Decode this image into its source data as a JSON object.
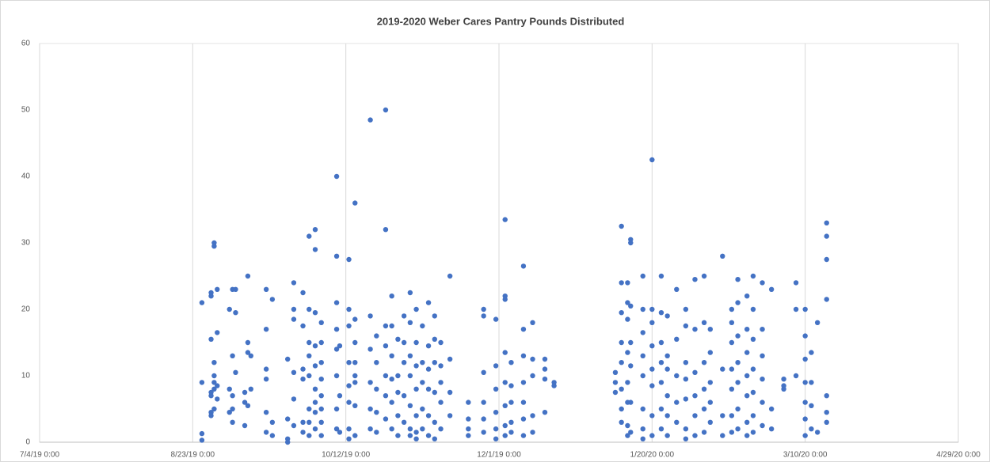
{
  "chart_data": {
    "type": "scatter",
    "title": "2019-2020 Weber Cares Pantry Pounds Distributed",
    "xlim": [
      43650,
      43950
    ],
    "xticks": [
      {
        "value": 43650,
        "label": "7/4/19 0:00"
      },
      {
        "value": 43700,
        "label": "8/23/19 0:00"
      },
      {
        "value": 43750,
        "label": "10/12/19 0:00"
      },
      {
        "value": 43800,
        "label": "12/1/19 0:00"
      },
      {
        "value": 43850,
        "label": "1/20/20 0:00"
      },
      {
        "value": 43900,
        "label": "3/10/20 0:00"
      },
      {
        "value": 43950,
        "label": "4/29/20 0:00"
      }
    ],
    "ylim": [
      0,
      60
    ],
    "yticks": [
      0,
      10,
      20,
      30,
      40,
      50,
      60
    ],
    "grid": true,
    "series": [
      {
        "color": "#4472c4",
        "x": [
          43703,
          43703,
          43703,
          43703,
          43706,
          43706,
          43706,
          43706,
          43706,
          43706,
          43706,
          43707,
          43707,
          43707,
          43707,
          43707,
          43707,
          43707,
          43708,
          43708,
          43708,
          43708,
          43712,
          43712,
          43712,
          43713,
          43713,
          43713,
          43713,
          43713,
          43714,
          43714,
          43714,
          43717,
          43717,
          43717,
          43718,
          43718,
          43718,
          43718,
          43719,
          43719,
          43724,
          43724,
          43724,
          43724,
          43724,
          43724,
          43726,
          43726,
          43726,
          43731,
          43731,
          43731,
          43731,
          43733,
          43733,
          43733,
          43733,
          43733,
          43733,
          43736,
          43736,
          43736,
          43736,
          43736,
          43736,
          43738,
          43738,
          43738,
          43738,
          43738,
          43738,
          43738,
          43738,
          43740,
          43740,
          43740,
          43740,
          43740,
          43740,
          43740,
          43740,
          43740,
          43742,
          43742,
          43742,
          43742,
          43742,
          43742,
          43742,
          43742,
          43747,
          43747,
          43747,
          43747,
          43747,
          43747,
          43747,
          43747,
          43748,
          43748,
          43748,
          43751,
          43751,
          43751,
          43751,
          43751,
          43751,
          43751,
          43751,
          43753,
          43753,
          43753,
          43753,
          43753,
          43753,
          43753,
          43753,
          43758,
          43758,
          43758,
          43758,
          43758,
          43758,
          43760,
          43760,
          43760,
          43760,
          43760,
          43763,
          43763,
          43763,
          43763,
          43763,
          43763,
          43763,
          43765,
          43765,
          43765,
          43765,
          43765,
          43765,
          43767,
          43767,
          43767,
          43767,
          43767,
          43769,
          43769,
          43769,
          43769,
          43769,
          43771,
          43771,
          43771,
          43771,
          43771,
          43771,
          43771,
          43773,
          43773,
          43773,
          43773,
          43773,
          43773,
          43773,
          43775,
          43775,
          43775,
          43775,
          43775,
          43777,
          43777,
          43777,
          43777,
          43777,
          43777,
          43779,
          43779,
          43779,
          43779,
          43779,
          43779,
          43781,
          43781,
          43781,
          43781,
          43781,
          43784,
          43784,
          43784,
          43784,
          43790,
          43790,
          43790,
          43790,
          43795,
          43795,
          43795,
          43795,
          43795,
          43795,
          43799,
          43799,
          43799,
          43799,
          43799,
          43799,
          43802,
          43802,
          43802,
          43802,
          43802,
          43802,
          43802,
          43802,
          43804,
          43804,
          43804,
          43804,
          43804,
          43808,
          43808,
          43808,
          43808,
          43808,
          43808,
          43808,
          43811,
          43811,
          43811,
          43811,
          43811,
          43815,
          43815,
          43815,
          43815,
          43818,
          43818,
          43838,
          43838,
          43838,
          43840,
          43840,
          43840,
          43840,
          43840,
          43840,
          43840,
          43840,
          43842,
          43842,
          43842,
          43842,
          43842,
          43842,
          43842,
          43842,
          43843,
          43843,
          43843,
          43843,
          43843,
          43843,
          43843,
          43847,
          43847,
          43847,
          43847,
          43847,
          43847,
          43847,
          43847,
          43850,
          43850,
          43850,
          43850,
          43850,
          43850,
          43850,
          43850,
          43853,
          43853,
          43853,
          43853,
          43853,
          43853,
          43853,
          43855,
          43855,
          43855,
          43855,
          43855,
          43855,
          43858,
          43858,
          43858,
          43858,
          43858,
          43861,
          43861,
          43861,
          43861,
          43861,
          43861,
          43861,
          43864,
          43864,
          43864,
          43864,
          43864,
          43864,
          43867,
          43867,
          43867,
          43867,
          43867,
          43867,
          43869,
          43869,
          43869,
          43869,
          43869,
          43873,
          43873,
          43873,
          43873,
          43876,
          43876,
          43876,
          43876,
          43876,
          43876,
          43876,
          43878,
          43878,
          43878,
          43878,
          43878,
          43878,
          43878,
          43881,
          43881,
          43881,
          43881,
          43881,
          43881,
          43881,
          43883,
          43883,
          43883,
          43883,
          43883,
          43883,
          43883,
          43886,
          43886,
          43886,
          43886,
          43886,
          43886,
          43889,
          43889,
          43889,
          43893,
          43893,
          43893,
          43897,
          43897,
          43897,
          43900,
          43900,
          43900,
          43900,
          43900,
          43900,
          43900,
          43902,
          43902,
          43902,
          43902,
          43904,
          43904,
          43907,
          43907,
          43907,
          43907,
          43907,
          43907,
          43907
        ],
        "values": [
          21,
          9,
          1.3,
          0.3,
          22,
          22.5,
          15.5,
          7,
          7.5,
          4.5,
          4,
          30,
          29.5,
          12,
          10,
          9,
          8,
          5,
          23,
          16.5,
          8.5,
          6.5,
          20,
          8,
          4.5,
          23,
          13,
          7,
          5,
          3,
          23,
          19.5,
          10.5,
          7.5,
          6,
          2.5,
          25,
          15,
          13.5,
          5.5,
          13,
          8,
          23,
          17,
          11,
          9.5,
          4.5,
          1.5,
          21.5,
          3,
          1,
          12.5,
          3.5,
          0.5,
          0,
          24,
          20,
          18.5,
          10.5,
          6.5,
          2.5,
          22.5,
          17.5,
          11,
          9.5,
          3,
          1.5,
          31,
          20,
          15,
          13,
          10,
          5,
          3,
          1,
          32,
          29,
          19.5,
          14.5,
          11.5,
          8,
          6,
          4.5,
          2,
          18,
          15,
          12,
          9.5,
          7,
          5,
          3,
          1,
          40,
          28,
          21,
          17,
          14,
          10,
          5,
          2,
          14.5,
          7,
          1.5,
          27.5,
          20,
          17.5,
          12,
          8.5,
          6,
          2,
          0.5,
          36,
          18.5,
          15,
          12,
          10,
          9,
          5.5,
          1,
          48.5,
          19,
          14,
          9,
          5,
          2,
          16,
          12,
          8,
          4.5,
          1.5,
          50,
          32,
          17.5,
          14.5,
          10,
          7,
          3.5,
          22,
          17.5,
          13,
          9.5,
          6,
          2,
          15.5,
          10,
          7.5,
          4,
          1,
          19,
          15,
          12,
          7,
          3,
          22.5,
          18,
          13,
          10,
          5.5,
          2,
          1,
          20,
          15,
          11.5,
          8,
          4,
          1.5,
          0.5,
          17.5,
          12,
          9,
          5,
          2,
          21,
          14.5,
          11,
          8,
          4,
          1,
          19,
          15.5,
          12,
          7.5,
          3,
          0.5,
          15,
          11.5,
          9,
          6,
          2,
          25,
          12.5,
          7.5,
          4,
          6,
          3.5,
          2,
          1,
          20,
          19,
          10.5,
          6,
          3.5,
          1.5,
          18.5,
          11.5,
          8,
          4.5,
          2,
          0.5,
          33.5,
          22,
          21.5,
          13.5,
          9,
          5.5,
          2.5,
          1,
          12,
          8.5,
          6,
          3,
          1.5,
          26.5,
          17,
          13,
          9,
          6,
          3.5,
          1,
          18,
          12.5,
          10,
          4,
          1.5,
          12.5,
          11,
          9.5,
          4.5,
          9,
          8.5,
          10.5,
          9,
          7.5,
          32.5,
          24,
          19.5,
          15,
          12,
          8,
          5,
          3,
          24,
          21,
          18.5,
          13.5,
          9,
          6,
          2.5,
          1,
          30,
          30.5,
          20.5,
          15,
          11.5,
          6,
          1.5,
          25,
          20,
          16.5,
          13,
          10,
          5,
          2,
          0.5,
          42.5,
          20,
          18,
          14.5,
          11,
          8.5,
          4,
          1,
          25,
          19.5,
          15,
          12,
          9,
          5,
          2,
          19,
          13,
          11,
          7,
          4,
          1,
          23,
          15.5,
          10,
          6,
          3,
          20,
          17.5,
          12,
          9.5,
          6.5,
          2,
          0.5,
          24.5,
          17,
          10.5,
          7,
          4,
          1,
          25,
          18,
          12,
          8,
          5,
          1.5,
          17,
          13.5,
          9,
          6,
          3,
          28,
          11,
          4,
          1,
          20,
          18,
          15,
          11,
          8,
          4,
          1.5,
          24.5,
          21,
          16,
          12,
          9,
          5,
          2,
          22,
          17,
          13.5,
          10,
          7,
          3,
          1,
          25,
          20,
          15.5,
          11,
          7.5,
          4,
          1.5,
          24,
          17,
          13,
          9.5,
          6,
          2.5,
          23,
          5,
          2,
          9.5,
          8.5,
          8,
          24,
          20,
          10,
          20,
          16,
          12.5,
          9,
          6,
          3.5,
          1,
          13.5,
          9,
          5.5,
          2,
          18,
          1.5,
          33,
          31,
          27.5,
          21.5,
          7,
          4.5,
          3
        ]
      }
    ]
  }
}
